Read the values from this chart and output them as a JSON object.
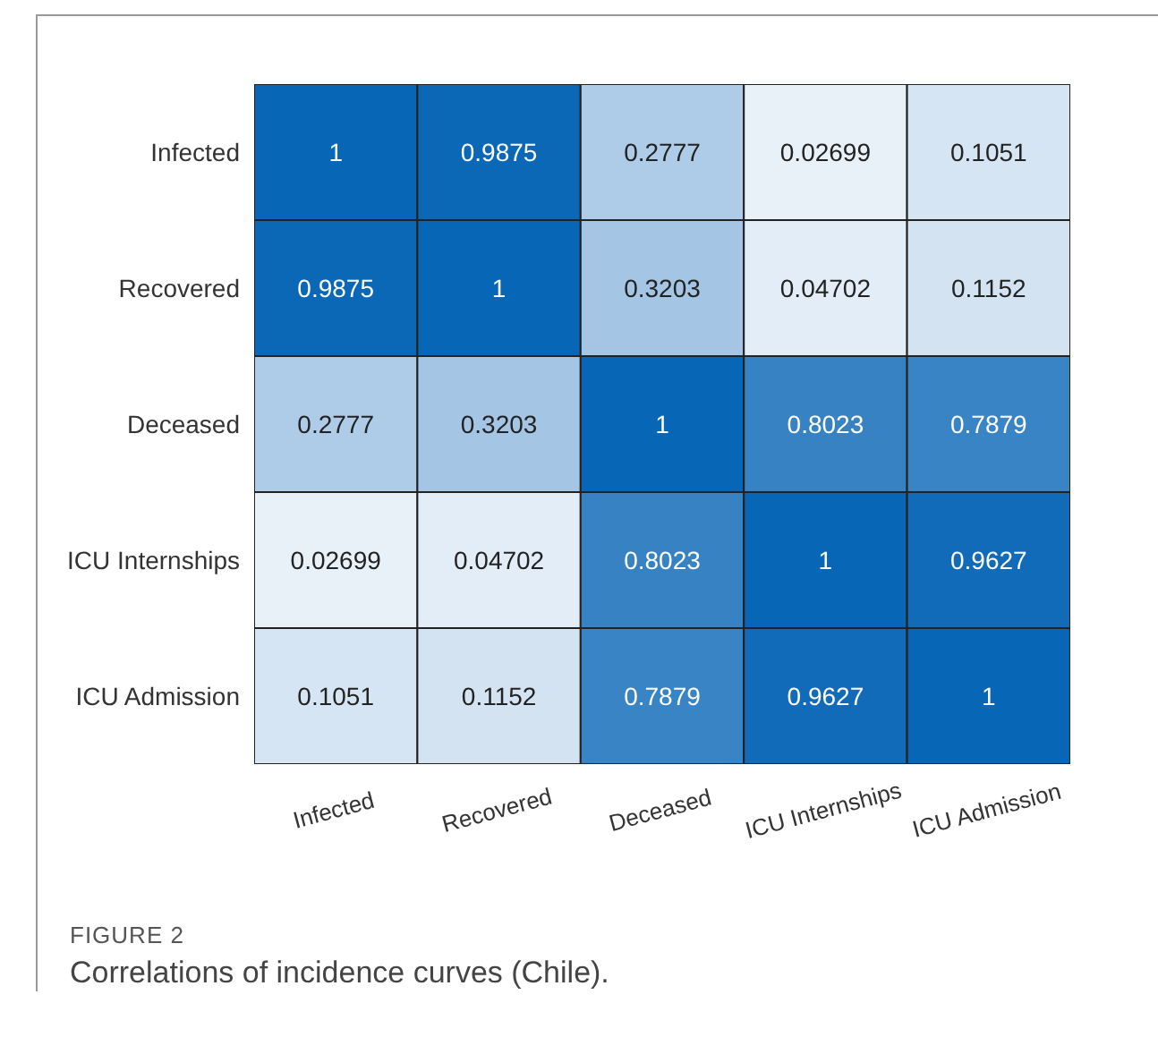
{
  "chart_data": {
    "type": "heatmap",
    "categories": [
      "Infected",
      "Recovered",
      "Deceased",
      "ICU Internships",
      "ICU Admission"
    ],
    "y_categories": [
      "Infected",
      "Recovered",
      "Deceased",
      "ICU Internships",
      "ICU Admission"
    ],
    "cells": [
      [
        1,
        0.9875,
        0.2777,
        0.02699,
        0.1051
      ],
      [
        0.9875,
        1,
        0.3203,
        0.04702,
        0.1152
      ],
      [
        0.2777,
        0.3203,
        1,
        0.8023,
        0.7879
      ],
      [
        0.02699,
        0.04702,
        0.8023,
        1,
        0.9627
      ],
      [
        0.1051,
        0.1152,
        0.7879,
        0.9627,
        1
      ]
    ],
    "data_labels": true,
    "annotations": [
      "FIGURE 2",
      "Correlations of incidence curves (Chile)."
    ]
  }
}
